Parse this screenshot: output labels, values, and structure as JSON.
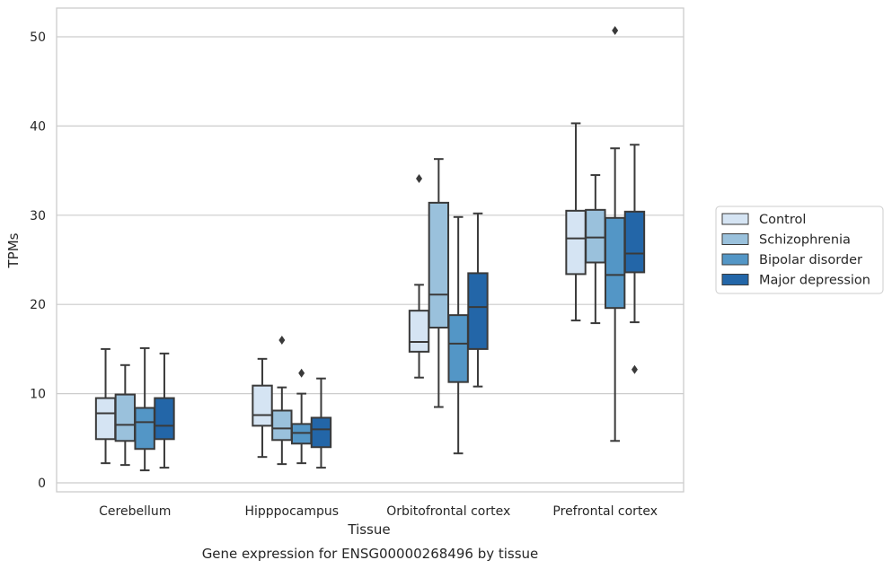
{
  "caption": "Gene expression for ENSG00000268496 by tissue",
  "chart_data": {
    "type": "box",
    "xlabel": "Tissue",
    "ylabel": "TPMs",
    "ylim": [
      -1,
      53
    ],
    "yticks": [
      0,
      10,
      20,
      30,
      40,
      50
    ],
    "grid": "horizontal",
    "legend_position": "right",
    "categories": [
      "Cerebellum",
      "Hipppocampus",
      "Orbitofrontal cortex",
      "Prefrontal cortex"
    ],
    "series": [
      {
        "name": "Control",
        "color": "#d5e4f3",
        "boxes": [
          {
            "whislo": 2.2,
            "q1": 4.9,
            "med": 7.8,
            "q3": 9.5,
            "whishi": 15.0,
            "fliers": []
          },
          {
            "whislo": 2.9,
            "q1": 6.4,
            "med": 7.6,
            "q3": 10.9,
            "whishi": 13.9,
            "fliers": []
          },
          {
            "whislo": 11.8,
            "q1": 14.7,
            "med": 15.8,
            "q3": 19.3,
            "whishi": 22.2,
            "fliers": [
              34.1
            ]
          },
          {
            "whislo": 18.2,
            "q1": 23.4,
            "med": 27.4,
            "q3": 30.5,
            "whishi": 40.3,
            "fliers": []
          }
        ]
      },
      {
        "name": "Schizophrenia",
        "color": "#9ac1dc",
        "boxes": [
          {
            "whislo": 2.0,
            "q1": 4.7,
            "med": 6.5,
            "q3": 9.9,
            "whishi": 13.2,
            "fliers": []
          },
          {
            "whislo": 2.1,
            "q1": 4.8,
            "med": 6.1,
            "q3": 8.1,
            "whishi": 10.7,
            "fliers": [
              16.0
            ]
          },
          {
            "whislo": 8.5,
            "q1": 17.4,
            "med": 21.1,
            "q3": 31.4,
            "whishi": 36.3,
            "fliers": []
          },
          {
            "whislo": 17.9,
            "q1": 24.7,
            "med": 27.5,
            "q3": 30.6,
            "whishi": 34.5,
            "fliers": []
          }
        ]
      },
      {
        "name": "Bipolar disorder",
        "color": "#5396c6",
        "boxes": [
          {
            "whislo": 1.4,
            "q1": 3.8,
            "med": 6.8,
            "q3": 8.4,
            "whishi": 15.1,
            "fliers": []
          },
          {
            "whislo": 2.2,
            "q1": 4.4,
            "med": 5.6,
            "q3": 6.6,
            "whishi": 10.0,
            "fliers": [
              12.3
            ]
          },
          {
            "whislo": 3.3,
            "q1": 11.3,
            "med": 15.6,
            "q3": 18.8,
            "whishi": 29.8,
            "fliers": []
          },
          {
            "whislo": 4.7,
            "q1": 19.6,
            "med": 23.3,
            "q3": 29.7,
            "whishi": 37.5,
            "fliers": [
              50.7
            ]
          }
        ]
      },
      {
        "name": "Major depression",
        "color": "#2366a8",
        "boxes": [
          {
            "whislo": 1.7,
            "q1": 4.9,
            "med": 6.4,
            "q3": 9.5,
            "whishi": 14.5,
            "fliers": []
          },
          {
            "whislo": 1.7,
            "q1": 4.0,
            "med": 6.0,
            "q3": 7.3,
            "whishi": 11.7,
            "fliers": []
          },
          {
            "whislo": 10.8,
            "q1": 15.0,
            "med": 19.7,
            "q3": 23.5,
            "whishi": 30.2,
            "fliers": []
          },
          {
            "whislo": 18.0,
            "q1": 23.6,
            "med": 25.7,
            "q3": 30.4,
            "whishi": 37.9,
            "fliers": [
              12.7
            ]
          }
        ]
      }
    ]
  },
  "colors": {
    "axes_edge": "#cccccc",
    "grid": "#cccccc",
    "box_edge": "#3a3a3a",
    "text": "#262626"
  }
}
